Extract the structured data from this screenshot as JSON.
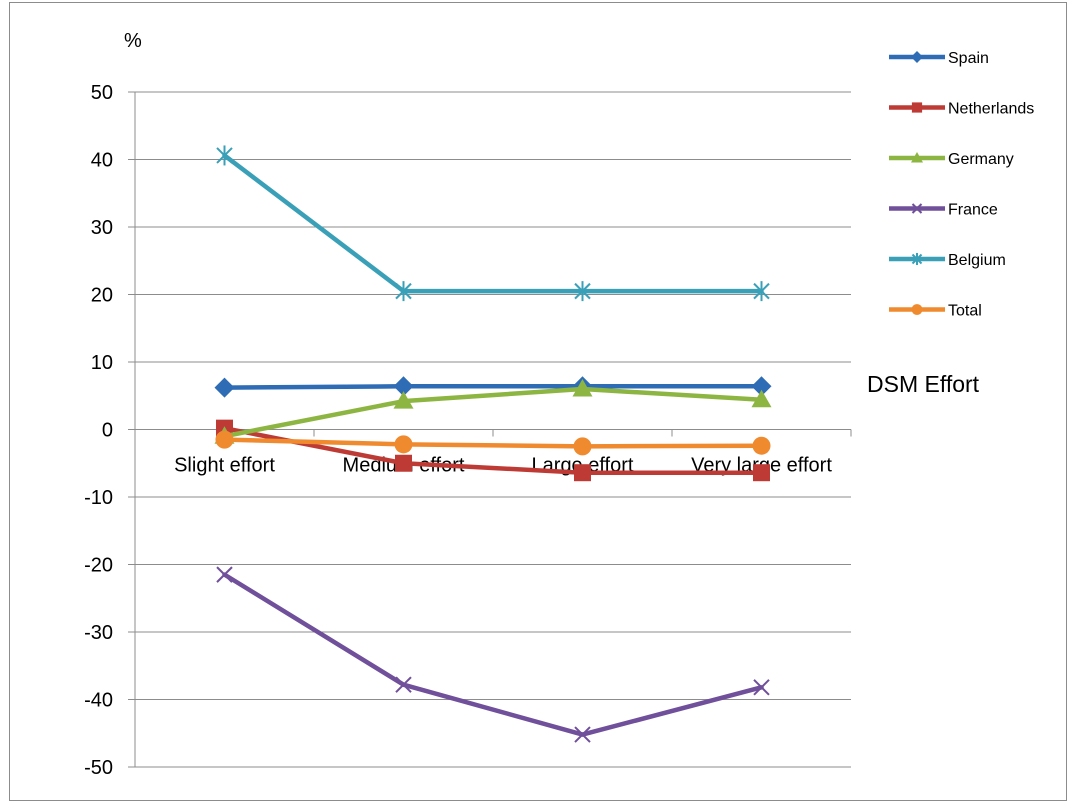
{
  "chart_data": {
    "type": "line",
    "ylabel": "%",
    "xlabel": "DSM Effort",
    "categories": [
      "Slight effort",
      "Medium effort",
      "Large effort",
      "Very large effort"
    ],
    "ylim": [
      -50,
      50
    ],
    "ytick_step": 10,
    "grid": "horizontal",
    "legend_position": "right",
    "series": [
      {
        "name": "Spain",
        "color": "#2e6cb5",
        "marker": "diamond",
        "values": [
          6.2,
          6.4,
          6.4,
          6.4
        ]
      },
      {
        "name": "Netherlands",
        "color": "#be3b35",
        "marker": "square",
        "values": [
          0.2,
          -5.0,
          -6.4,
          -6.4
        ]
      },
      {
        "name": "Germany",
        "color": "#8db542",
        "marker": "triangle",
        "values": [
          -1.0,
          4.2,
          6.0,
          4.4
        ]
      },
      {
        "name": "France",
        "color": "#70509a",
        "marker": "x",
        "values": [
          -21.5,
          -37.8,
          -45.2,
          -38.2
        ]
      },
      {
        "name": "Belgium",
        "color": "#3aa0b8",
        "marker": "star",
        "values": [
          40.6,
          20.5,
          20.5,
          20.5
        ]
      },
      {
        "name": "Total",
        "color": "#f08a2e",
        "marker": "circle",
        "values": [
          -1.5,
          -2.2,
          -2.5,
          -2.4
        ]
      }
    ]
  }
}
